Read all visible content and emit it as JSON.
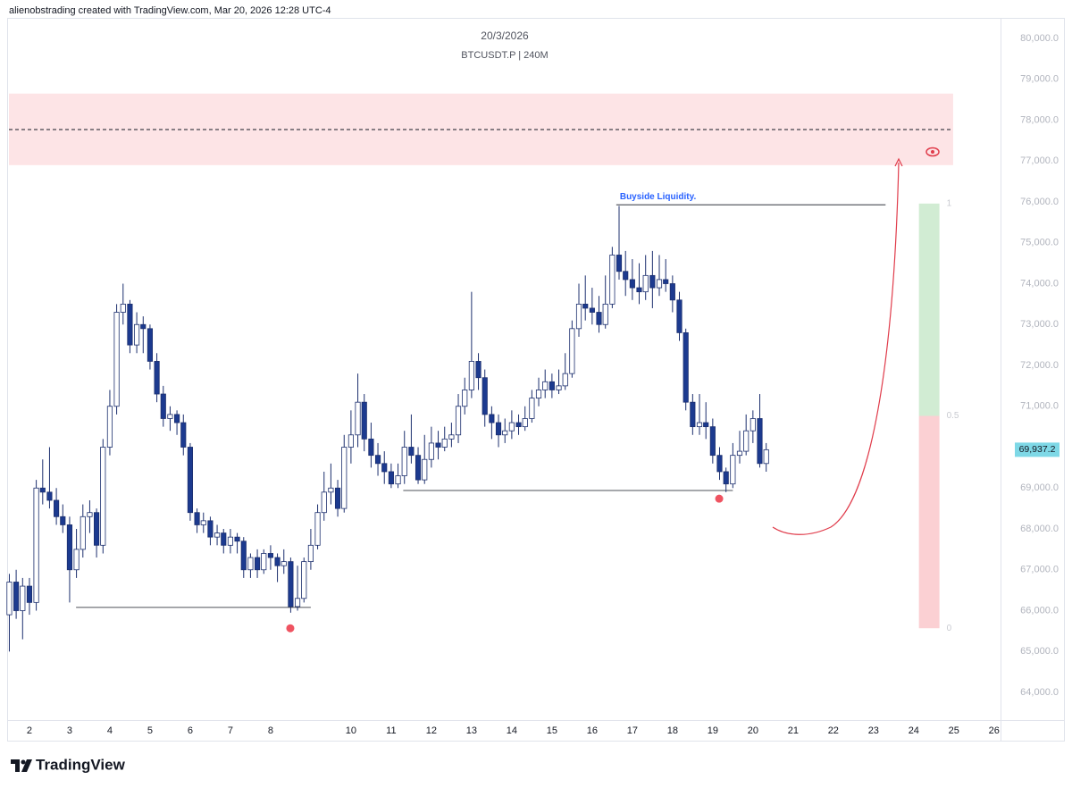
{
  "header": "alienobstrading created with TradingView.com, Mar 20, 2026 12:28 UTC-4",
  "brand": "TradingView",
  "chart_data": {
    "type": "candlestick",
    "title": "20/3/2026",
    "subtitle": "BTCUSDT.P | 240M",
    "up_color": "#ffffff",
    "down_color": "#1c3a8f",
    "edge_color": "#1c2f6e",
    "xlim": [
      1.49,
      26.16
    ],
    "ylim": [
      62842,
      80721
    ],
    "xticks": [
      2,
      3,
      4,
      5,
      6,
      7,
      8,
      10,
      11,
      12,
      13,
      14,
      15,
      16,
      17,
      18,
      19,
      20,
      21,
      22,
      23,
      24,
      25,
      26
    ],
    "yticks": [
      {
        "value": 64000,
        "label": "64,000.0"
      },
      {
        "value": 65000,
        "label": "65,000.0"
      },
      {
        "value": 66000,
        "label": "66,000.0"
      },
      {
        "value": 67000,
        "label": "67,000.0"
      },
      {
        "value": 68000,
        "label": "68,000.0"
      },
      {
        "value": 69000,
        "label": "69,000.0"
      },
      {
        "value": 70000,
        "label": "70,000.0"
      },
      {
        "value": 71000,
        "label": "71,000.0"
      },
      {
        "value": 72000,
        "label": "72,000.0"
      },
      {
        "value": 73000,
        "label": "73,000.0"
      },
      {
        "value": 74000,
        "label": "74,000.0"
      },
      {
        "value": 75000,
        "label": "75,000.0"
      },
      {
        "value": 76000,
        "label": "76,000.0"
      },
      {
        "value": 77000,
        "label": "77,000.0"
      },
      {
        "value": 78000,
        "label": "78,000.0"
      },
      {
        "value": 79000,
        "label": "79,000.0"
      },
      {
        "value": 80000,
        "label": "80,000.0"
      }
    ],
    "x": [
      1.5,
      1.67,
      1.83,
      2,
      2.17,
      2.33,
      2.5,
      2.67,
      2.83,
      3,
      3.17,
      3.33,
      3.5,
      3.67,
      3.83,
      4,
      4.17,
      4.33,
      4.5,
      4.67,
      4.83,
      5,
      5.17,
      5.33,
      5.5,
      5.67,
      5.83,
      6,
      6.17,
      6.33,
      6.5,
      6.67,
      6.83,
      7,
      7.17,
      7.33,
      7.5,
      7.67,
      7.83,
      8,
      8.17,
      8.33,
      8.5,
      8.67,
      8.83,
      9,
      9.17,
      9.33,
      9.5,
      9.67,
      9.83,
      10,
      10.17,
      10.33,
      10.5,
      10.67,
      10.83,
      11,
      11.17,
      11.33,
      11.5,
      11.67,
      11.83,
      12,
      12.17,
      12.33,
      12.5,
      12.67,
      12.83,
      13,
      13.17,
      13.33,
      13.5,
      13.67,
      13.83,
      14,
      14.17,
      14.33,
      14.5,
      14.67,
      14.83,
      15,
      15.17,
      15.33,
      15.5,
      15.67,
      15.83,
      16,
      16.17,
      16.33,
      16.5,
      16.67,
      16.83,
      17,
      17.17,
      17.33,
      17.5,
      17.67,
      17.83,
      18,
      18.17,
      18.33,
      18.5,
      18.67,
      18.83,
      19,
      19.17,
      19.33,
      19.5,
      19.67,
      19.83,
      20,
      20.17,
      20.33
    ],
    "ohlc": [
      [
        65900,
        66900,
        65000,
        66700
      ],
      [
        66700,
        67000,
        65800,
        66000
      ],
      [
        66000,
        66800,
        65300,
        66600
      ],
      [
        66600,
        66800,
        65900,
        66200
      ],
      [
        66200,
        69200,
        66000,
        69000
      ],
      [
        69000,
        69700,
        68600,
        68900
      ],
      [
        68900,
        70000,
        68500,
        68700
      ],
      [
        68700,
        69000,
        68100,
        68300
      ],
      [
        68300,
        68600,
        67900,
        68100
      ],
      [
        68100,
        68300,
        66200,
        67000
      ],
      [
        67000,
        68000,
        66800,
        67500
      ],
      [
        67500,
        68600,
        67300,
        68300
      ],
      [
        68300,
        68700,
        67900,
        68400
      ],
      [
        68400,
        68500,
        67300,
        67600
      ],
      [
        67600,
        70200,
        67400,
        70000
      ],
      [
        70000,
        71400,
        69800,
        71000
      ],
      [
        71000,
        73500,
        70800,
        73300
      ],
      [
        73300,
        74000,
        73000,
        73500
      ],
      [
        73500,
        73600,
        72300,
        72500
      ],
      [
        72500,
        73300,
        72300,
        73000
      ],
      [
        73000,
        73200,
        72300,
        72900
      ],
      [
        72900,
        73000,
        71900,
        72100
      ],
      [
        72100,
        72300,
        71100,
        71300
      ],
      [
        71300,
        71500,
        70500,
        70700
      ],
      [
        70700,
        71000,
        70400,
        70800
      ],
      [
        70800,
        70900,
        70300,
        70600
      ],
      [
        70600,
        70800,
        69800,
        70000
      ],
      [
        70000,
        70100,
        68200,
        68400
      ],
      [
        68400,
        68500,
        67900,
        68100
      ],
      [
        68100,
        68400,
        67900,
        68200
      ],
      [
        68200,
        68300,
        67600,
        67800
      ],
      [
        67800,
        68100,
        67600,
        67900
      ],
      [
        67900,
        68000,
        67400,
        67600
      ],
      [
        67600,
        68000,
        67400,
        67800
      ],
      [
        67800,
        67900,
        67400,
        67700
      ],
      [
        67700,
        67800,
        66800,
        67000
      ],
      [
        67000,
        67400,
        66800,
        67300
      ],
      [
        67300,
        67500,
        66800,
        67000
      ],
      [
        67000,
        67500,
        66900,
        67400
      ],
      [
        67400,
        67600,
        67000,
        67300
      ],
      [
        67300,
        67400,
        66700,
        67100
      ],
      [
        67100,
        67500,
        66900,
        67200
      ],
      [
        67200,
        67300,
        65950,
        66100
      ],
      [
        66100,
        67100,
        66000,
        66300
      ],
      [
        66300,
        67300,
        66200,
        67200
      ],
      [
        67200,
        68000,
        67000,
        67600
      ],
      [
        67600,
        68600,
        67500,
        68400
      ],
      [
        68400,
        69400,
        68200,
        68900
      ],
      [
        68900,
        69600,
        68600,
        69000
      ],
      [
        69000,
        69200,
        68300,
        68500
      ],
      [
        68500,
        70300,
        68400,
        70000
      ],
      [
        70000,
        70900,
        69600,
        70300
      ],
      [
        70300,
        71800,
        70000,
        71100
      ],
      [
        71100,
        71300,
        69900,
        70200
      ],
      [
        70200,
        70600,
        69500,
        69800
      ],
      [
        69800,
        70100,
        69300,
        69600
      ],
      [
        69600,
        69900,
        69100,
        69400
      ],
      [
        69400,
        69600,
        69000,
        69100
      ],
      [
        69100,
        69600,
        69000,
        69300
      ],
      [
        69300,
        70400,
        69100,
        70000
      ],
      [
        70000,
        70800,
        69600,
        69800
      ],
      [
        69800,
        70000,
        69100,
        69200
      ],
      [
        69200,
        70300,
        69100,
        69700
      ],
      [
        69700,
        70500,
        69500,
        70100
      ],
      [
        70100,
        70400,
        69700,
        70000
      ],
      [
        70000,
        70500,
        69900,
        70200
      ],
      [
        70200,
        70600,
        70000,
        70300
      ],
      [
        70300,
        71300,
        70100,
        71000
      ],
      [
        71000,
        71700,
        70800,
        71400
      ],
      [
        71400,
        73800,
        71200,
        72100
      ],
      [
        72100,
        72300,
        71400,
        71700
      ],
      [
        71700,
        71900,
        70500,
        70800
      ],
      [
        70800,
        71000,
        70200,
        70600
      ],
      [
        70600,
        70800,
        70000,
        70300
      ],
      [
        70300,
        70700,
        70100,
        70400
      ],
      [
        70400,
        70900,
        70200,
        70600
      ],
      [
        70600,
        70800,
        70300,
        70500
      ],
      [
        70500,
        71000,
        70400,
        70700
      ],
      [
        70700,
        71400,
        70600,
        71200
      ],
      [
        71200,
        71700,
        71000,
        71400
      ],
      [
        71400,
        71900,
        71200,
        71600
      ],
      [
        71600,
        71800,
        71200,
        71400
      ],
      [
        71400,
        71900,
        71300,
        71500
      ],
      [
        71500,
        72300,
        71400,
        71800
      ],
      [
        71800,
        73100,
        71700,
        72900
      ],
      [
        72900,
        74000,
        72700,
        73500
      ],
      [
        73500,
        74200,
        73100,
        73400
      ],
      [
        73400,
        73900,
        73000,
        73300
      ],
      [
        73300,
        73700,
        72800,
        73000
      ],
      [
        73000,
        74200,
        72900,
        73500
      ],
      [
        73500,
        74900,
        73400,
        74700
      ],
      [
        74700,
        75900,
        74100,
        74300
      ],
      [
        74300,
        74800,
        73700,
        74100
      ],
      [
        74100,
        74600,
        73600,
        73900
      ],
      [
        73900,
        74500,
        73500,
        73800
      ],
      [
        73800,
        74700,
        73600,
        74200
      ],
      [
        74200,
        74800,
        73400,
        73900
      ],
      [
        73900,
        74700,
        73700,
        74100
      ],
      [
        74100,
        74600,
        73800,
        74000
      ],
      [
        74000,
        74200,
        73300,
        73600
      ],
      [
        73600,
        73800,
        72600,
        72800
      ],
      [
        72800,
        72900,
        70900,
        71100
      ],
      [
        71100,
        71300,
        70300,
        70500
      ],
      [
        70500,
        71300,
        70300,
        70600
      ],
      [
        70600,
        71100,
        70200,
        70500
      ],
      [
        70500,
        70700,
        69600,
        69800
      ],
      [
        69800,
        70000,
        69200,
        69400
      ],
      [
        69400,
        69500,
        68900,
        69100
      ],
      [
        69100,
        70100,
        69000,
        69800
      ],
      [
        69800,
        70400,
        69600,
        69900
      ],
      [
        69900,
        70800,
        69800,
        70400
      ],
      [
        70400,
        70900,
        70100,
        70700
      ],
      [
        70700,
        71300,
        69500,
        69600
      ],
      [
        69600,
        70100,
        69400,
        69937.2
      ]
    ],
    "last_price": {
      "value": 69937.2,
      "label": "69,937.2"
    },
    "zone": {
      "top": 78650,
      "bottom": 76900,
      "mid": 77770,
      "xrange": [
        1.49,
        24.98
      ],
      "color": "#fde4e6"
    },
    "levels": [
      {
        "price": 66080,
        "xrange": [
          3.16,
          9.0
        ]
      },
      {
        "price": 68940,
        "xrange": [
          11.3,
          19.5
        ]
      },
      {
        "price": 75930,
        "xrange": [
          16.6,
          23.3
        ],
        "label": "Buyside Liquidity."
      }
    ],
    "markers": [
      [
        8.49,
        65570
      ],
      [
        19.16,
        68740
      ]
    ],
    "fib": {
      "levels": [
        1,
        0.5,
        0
      ],
      "top": 75960,
      "bottom": 65570,
      "xrange": [
        24.13,
        24.64
      ],
      "upper_color": "#d1ecd3",
      "lower_color": "#fbd0d3"
    }
  }
}
